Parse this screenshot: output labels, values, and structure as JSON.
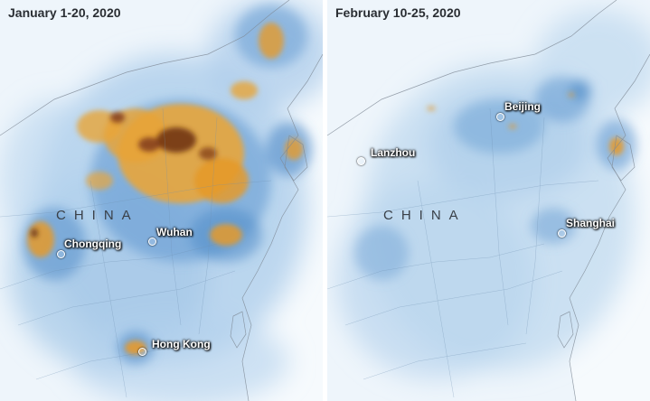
{
  "panels": [
    {
      "title": "January 1-20, 2020",
      "country_label": "CHINA",
      "cities": [
        {
          "name": "Chongqing"
        },
        {
          "name": "Wuhan"
        },
        {
          "name": "Hong Kong"
        }
      ]
    },
    {
      "title": "February 10-25, 2020",
      "country_label": "CHINA",
      "cities": [
        {
          "name": "Beijing"
        },
        {
          "name": "Lanzhou"
        },
        {
          "name": "Shanghai"
        }
      ]
    }
  ],
  "colors": {
    "background": "#eef5fb",
    "low_concentration": "#9cc3e6",
    "medium_concentration": "#4e8bc8",
    "high_concentration": "#e59a2b",
    "peak_concentration": "#6b2e12"
  }
}
